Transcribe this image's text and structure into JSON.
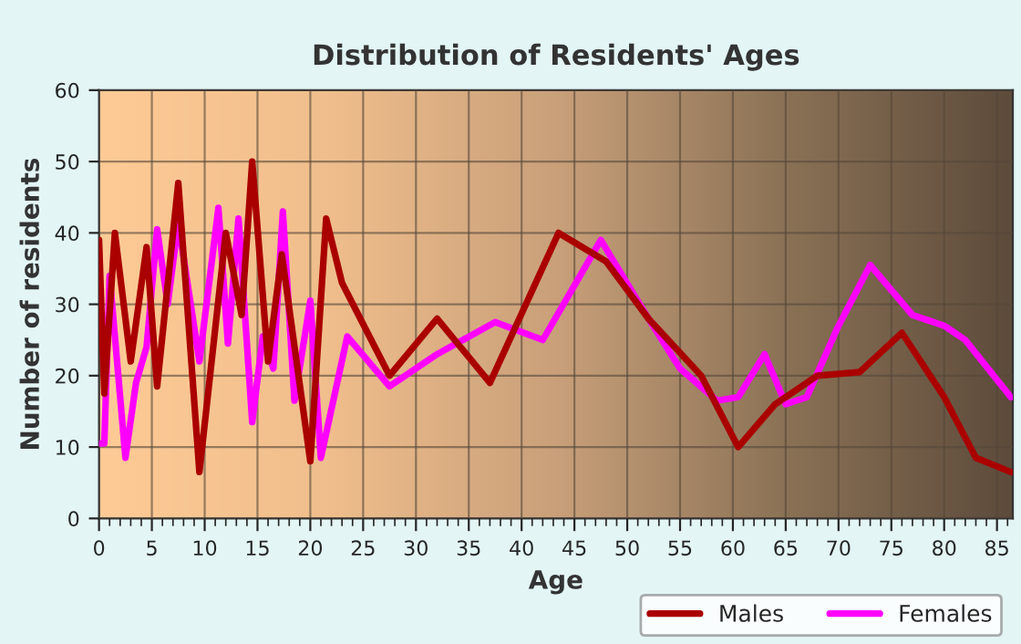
{
  "chart_data": {
    "type": "line",
    "title": "Distribution of Residents' Ages",
    "xlabel": "Age",
    "ylabel": "Number of residents",
    "xlim": [
      0,
      86.5
    ],
    "ylim": [
      0,
      60
    ],
    "xticks": [
      0,
      5,
      10,
      15,
      20,
      25,
      30,
      35,
      40,
      45,
      50,
      55,
      60,
      65,
      70,
      75,
      80,
      85
    ],
    "yticks": [
      0,
      10,
      20,
      30,
      40,
      50,
      60
    ],
    "grid": true,
    "legend": "bottom right",
    "series": [
      {
        "name": "Males",
        "color": "#aa0000",
        "x": [
          0,
          0.5,
          1.5,
          3,
          4.5,
          5.5,
          7.5,
          9.5,
          12,
          13.5,
          14.5,
          16,
          17.3,
          20,
          21.5,
          23,
          27.5,
          32,
          37,
          43.5,
          48,
          52,
          57,
          60.5,
          64,
          68,
          72,
          76,
          80,
          83,
          86.3
        ],
        "values": [
          39,
          17.5,
          40,
          22,
          38,
          18.5,
          47,
          6.5,
          40,
          28.5,
          50,
          22,
          37,
          8,
          42,
          33,
          20,
          28,
          19,
          40,
          36,
          28,
          20,
          10,
          16,
          20,
          20.5,
          26,
          17,
          8.5,
          6.5
        ]
      },
      {
        "name": "Females",
        "color": "#ff00ff",
        "x": [
          0,
          0.5,
          1,
          2.5,
          3.5,
          4.5,
          5.5,
          6.5,
          7.5,
          9.5,
          11.3,
          12.2,
          13.2,
          14.5,
          15.5,
          16.5,
          17.4,
          18.5,
          20,
          21,
          23.5,
          27.5,
          32,
          37.5,
          42,
          47.5,
          52,
          55,
          58.5,
          60.5,
          63,
          65,
          67,
          70,
          73,
          77,
          80,
          82,
          86.3
        ],
        "values": [
          10.5,
          10.5,
          34,
          8.5,
          19,
          24,
          40.5,
          30,
          41.5,
          22,
          43.5,
          24.5,
          42,
          13.5,
          25.5,
          21,
          43,
          16.5,
          30.5,
          8.5,
          25.5,
          18.5,
          23,
          27.5,
          25,
          39,
          28,
          21,
          16.5,
          17,
          23,
          16,
          17,
          27,
          35.5,
          28.5,
          27,
          25,
          17
        ]
      }
    ]
  }
}
